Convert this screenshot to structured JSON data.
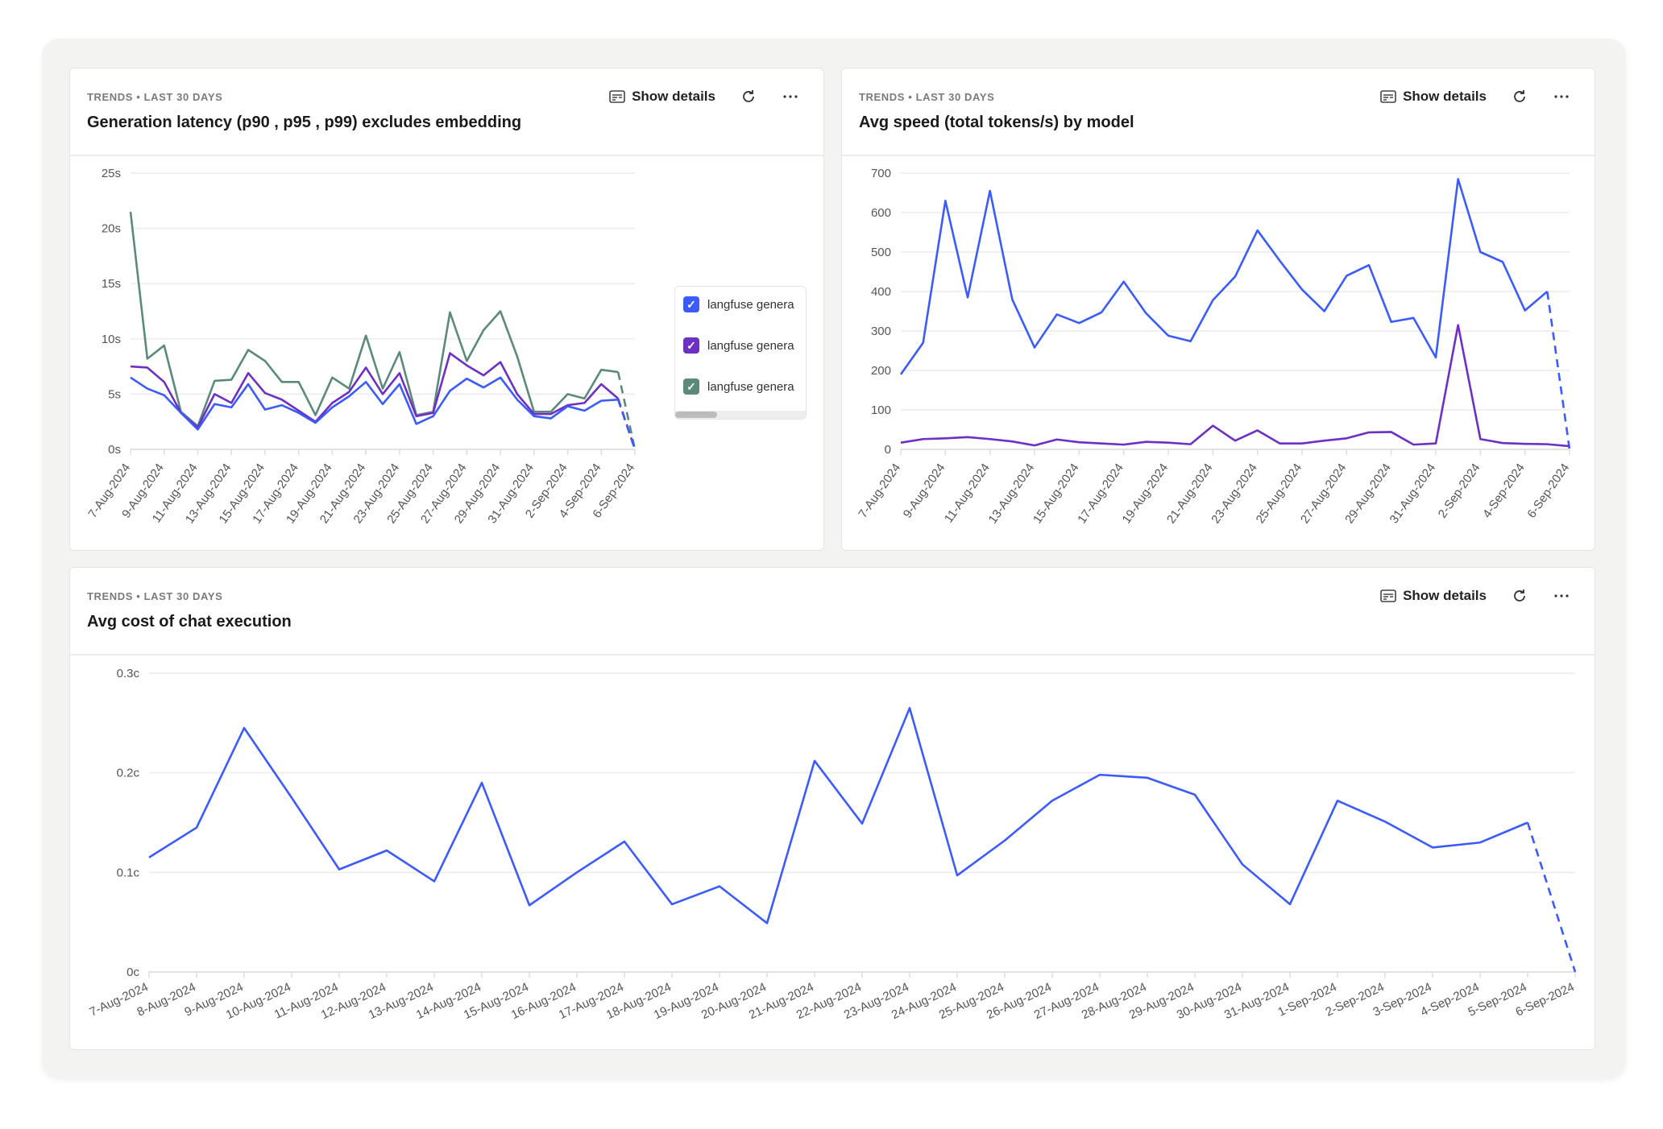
{
  "common": {
    "eyebrow": "TRENDS • LAST 30 DAYS",
    "show_details": "Show details",
    "icons": [
      "details-icon",
      "refresh-icon",
      "more-icon"
    ]
  },
  "colors": {
    "blue": "#3b5bfd",
    "purple": "#6d2fc4",
    "green": "#5b8a7d"
  },
  "cards": [
    {
      "title": "Generation latency (p90 , p95 , p99) excludes embedding",
      "legend": [
        {
          "label": "langfuse genera",
          "color": "#3b5bfd"
        },
        {
          "label": "langfuse genera",
          "color": "#6d2fc4"
        },
        {
          "label": "langfuse genera",
          "color": "#5b8a7d"
        }
      ]
    },
    {
      "title": "Avg speed (total tokens/s) by model"
    },
    {
      "title": "Avg cost of chat execution"
    }
  ],
  "chart_data": [
    {
      "type": "line",
      "ylim": [
        0,
        25
      ],
      "yticks": [
        "0s",
        "5s",
        "10s",
        "15s",
        "20s",
        "25s"
      ],
      "ytick_values": [
        0,
        5,
        10,
        15,
        20,
        25
      ],
      "x": [
        "7-Aug-2024",
        "8-Aug-2024",
        "9-Aug-2024",
        "10-Aug-2024",
        "11-Aug-2024",
        "12-Aug-2024",
        "13-Aug-2024",
        "14-Aug-2024",
        "15-Aug-2024",
        "16-Aug-2024",
        "17-Aug-2024",
        "18-Aug-2024",
        "19-Aug-2024",
        "20-Aug-2024",
        "21-Aug-2024",
        "22-Aug-2024",
        "23-Aug-2024",
        "24-Aug-2024",
        "25-Aug-2024",
        "26-Aug-2024",
        "27-Aug-2024",
        "28-Aug-2024",
        "29-Aug-2024",
        "30-Aug-2024",
        "31-Aug-2024",
        "1-Sep-2024",
        "2-Sep-2024",
        "3-Sep-2024",
        "4-Sep-2024",
        "5-Sep-2024",
        "6-Sep-2024"
      ],
      "label_every": 2,
      "grid": true,
      "legend_placement": "right",
      "last_segment_dashed": true,
      "series": [
        {
          "color": "#5b8a7d",
          "values": [
            21.5,
            8.2,
            9.4,
            3.4,
            2.1,
            6.2,
            6.3,
            9,
            8,
            6.1,
            6.1,
            3.1,
            6.5,
            5.5,
            10.3,
            5.5,
            8.8,
            3.1,
            3.4,
            12.4,
            8,
            10.8,
            12.5,
            8.4,
            3.4,
            3.4,
            5,
            4.6,
            7.2,
            7,
            0
          ]
        },
        {
          "color": "#6d2fc4",
          "values": [
            7.5,
            7.4,
            6.1,
            3.3,
            2.0,
            5,
            4.2,
            6.9,
            5.1,
            4.5,
            3.5,
            2.5,
            4.2,
            5.2,
            7.4,
            5,
            6.9,
            3,
            3.3,
            8.7,
            7.6,
            6.7,
            7.9,
            5,
            3.2,
            3.2,
            4,
            4.2,
            5.9,
            4.6,
            0
          ]
        },
        {
          "color": "#3b5bfd",
          "values": [
            6.5,
            5.5,
            4.9,
            3.3,
            1.8,
            4.1,
            3.8,
            5.9,
            3.6,
            4,
            3.3,
            2.4,
            3.8,
            4.8,
            6.1,
            4.1,
            5.9,
            2.3,
            3.0,
            5.3,
            6.4,
            5.6,
            6.5,
            4.5,
            3,
            2.8,
            3.9,
            3.5,
            4.4,
            4.5,
            0
          ]
        }
      ]
    },
    {
      "type": "line",
      "ylim": [
        0,
        700
      ],
      "yticks": [
        "0",
        "100",
        "200",
        "300",
        "400",
        "500",
        "600",
        "700"
      ],
      "ytick_values": [
        0,
        100,
        200,
        300,
        400,
        500,
        600,
        700
      ],
      "x": [
        "7-Aug-2024",
        "8-Aug-2024",
        "9-Aug-2024",
        "10-Aug-2024",
        "11-Aug-2024",
        "12-Aug-2024",
        "13-Aug-2024",
        "14-Aug-2024",
        "15-Aug-2024",
        "16-Aug-2024",
        "17-Aug-2024",
        "18-Aug-2024",
        "19-Aug-2024",
        "20-Aug-2024",
        "21-Aug-2024",
        "22-Aug-2024",
        "23-Aug-2024",
        "24-Aug-2024",
        "25-Aug-2024",
        "26-Aug-2024",
        "27-Aug-2024",
        "28-Aug-2024",
        "29-Aug-2024",
        "30-Aug-2024",
        "31-Aug-2024",
        "1-Sep-2024",
        "2-Sep-2024",
        "3-Sep-2024",
        "4-Sep-2024",
        "5-Sep-2024",
        "6-Sep-2024"
      ],
      "label_every": 2,
      "grid": true,
      "last_segment_dashed": true,
      "series": [
        {
          "color": "#3b5bfd",
          "dashed_last": true,
          "values": [
            190,
            270,
            630,
            385,
            655,
            380,
            258,
            342,
            320,
            347,
            425,
            345,
            288,
            274,
            378,
            438,
            555,
            478,
            405,
            350,
            440,
            467,
            323,
            333,
            233,
            685,
            500,
            475,
            352,
            400,
            0
          ]
        },
        {
          "color": "#6d2fc4",
          "dashed_last": false,
          "values": [
            17,
            26,
            28,
            31,
            26,
            20,
            10,
            25,
            18,
            15,
            12,
            19,
            17,
            13,
            60,
            22,
            48,
            15,
            15,
            22,
            28,
            43,
            44,
            12,
            15,
            315,
            26,
            16,
            14,
            13,
            8
          ]
        }
      ]
    },
    {
      "type": "line",
      "ylim": [
        0,
        0.3
      ],
      "yticks": [
        "0c",
        "0.1c",
        "0.2c",
        "0.3c"
      ],
      "ytick_values": [
        0,
        0.1,
        0.2,
        0.3
      ],
      "x": [
        "7-Aug-2024",
        "8-Aug-2024",
        "9-Aug-2024",
        "10-Aug-2024",
        "11-Aug-2024",
        "12-Aug-2024",
        "13-Aug-2024",
        "14-Aug-2024",
        "15-Aug-2024",
        "16-Aug-2024",
        "17-Aug-2024",
        "18-Aug-2024",
        "19-Aug-2024",
        "20-Aug-2024",
        "21-Aug-2024",
        "22-Aug-2024",
        "23-Aug-2024",
        "24-Aug-2024",
        "25-Aug-2024",
        "26-Aug-2024",
        "27-Aug-2024",
        "28-Aug-2024",
        "29-Aug-2024",
        "30-Aug-2024",
        "31-Aug-2024",
        "1-Sep-2024",
        "2-Sep-2024",
        "3-Sep-2024",
        "4-Sep-2024",
        "5-Sep-2024",
        "6-Sep-2024"
      ],
      "label_every": 1,
      "grid": true,
      "last_segment_dashed": true,
      "series": [
        {
          "color": "#3b5bfd",
          "dashed_last": true,
          "values": [
            0.115,
            0.145,
            0.245,
            0.175,
            0.103,
            0.122,
            0.091,
            0.19,
            0.067,
            0.1,
            0.131,
            0.068,
            0.086,
            0.049,
            0.212,
            0.149,
            0.265,
            0.097,
            0.132,
            0.172,
            0.198,
            0.195,
            0.178,
            0.108,
            0.068,
            0.172,
            0.151,
            0.125,
            0.13,
            0.15,
            0
          ]
        }
      ]
    }
  ]
}
